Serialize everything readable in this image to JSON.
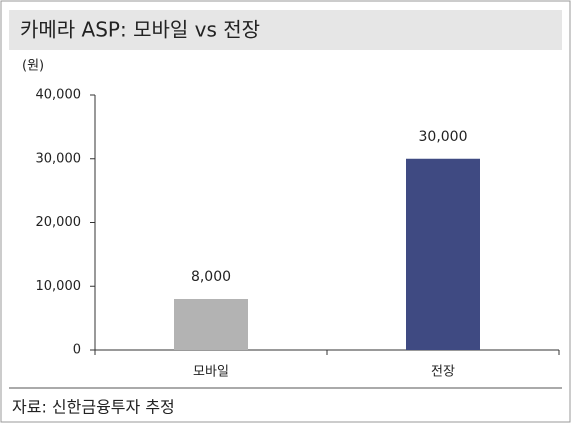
{
  "chart_data": {
    "type": "bar",
    "title": "카메라 ASP: 모바일 vs 전장",
    "y_label": "(원)",
    "source": "자료: 신한금융투자 추정",
    "categories": [
      "모바일",
      "전장"
    ],
    "values": [
      8000,
      30000
    ],
    "value_labels": [
      "8,000",
      "30,000"
    ],
    "colors": [
      "#b3b3b3",
      "#3f4a82"
    ],
    "ylim": [
      0,
      40000
    ],
    "yticks": [
      0,
      {
        "value": 10000,
        "label": "10,000"
      },
      {
        "value": 20000,
        "label": "20,000"
      },
      {
        "value": 30000,
        "label": "30,000"
      },
      {
        "value": 40000,
        "label": "40,000"
      }
    ],
    "grid": false
  }
}
